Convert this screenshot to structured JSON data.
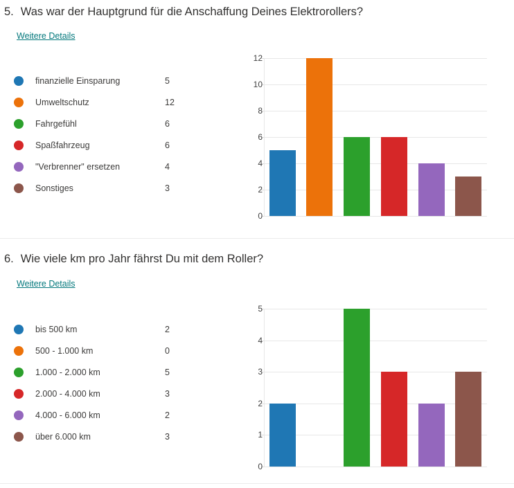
{
  "page": {
    "background": "#ffffff",
    "divider_color": "#ececec",
    "link_color": "#03787c"
  },
  "questions": [
    {
      "number": "5.",
      "title": "Was war der Hauptgrund für die Anschaffung Deines Elektrorollers?",
      "details_link": "Weitere Details"
    },
    {
      "number": "6.",
      "title": "Wie viele km pro Jahr fährst Du mit dem Roller?",
      "details_link": "Weitere Details"
    }
  ],
  "chart_data": [
    {
      "type": "bar",
      "title": "5. Was war der Hauptgrund für die Anschaffung Deines Elektrorollers?",
      "categories": [
        "finanzielle Einsparung",
        "Umweltschutz",
        "Fahrgefühl",
        "Spaßfahrzeug",
        "\"Verbrenner\" ersetzen",
        "Sonstiges"
      ],
      "values": [
        5,
        12,
        6,
        6,
        4,
        3
      ],
      "colors": [
        "#1f77b4",
        "#ec720a",
        "#2ca02c",
        "#d62728",
        "#9467bd",
        "#8c564b"
      ],
      "yticks": [
        0,
        2,
        4,
        6,
        8,
        10,
        12
      ],
      "ylim": [
        0,
        12
      ],
      "xlabel": "",
      "ylabel": "",
      "grid": true,
      "legend_position": "left"
    },
    {
      "type": "bar",
      "title": "6. Wie viele km pro Jahr fährst Du mit dem Roller?",
      "categories": [
        "bis 500 km",
        "500 - 1.000 km",
        "1.000 - 2.000 km",
        "2.000 - 4.000 km",
        "4.000 - 6.000 km",
        "über 6.000 km"
      ],
      "values": [
        2,
        0,
        5,
        3,
        2,
        3
      ],
      "colors": [
        "#1f77b4",
        "#ec720a",
        "#2ca02c",
        "#d62728",
        "#9467bd",
        "#8c564b"
      ],
      "yticks": [
        0,
        1,
        2,
        3,
        4,
        5
      ],
      "ylim": [
        0,
        5
      ],
      "xlabel": "",
      "ylabel": "",
      "grid": true,
      "legend_position": "left"
    }
  ]
}
